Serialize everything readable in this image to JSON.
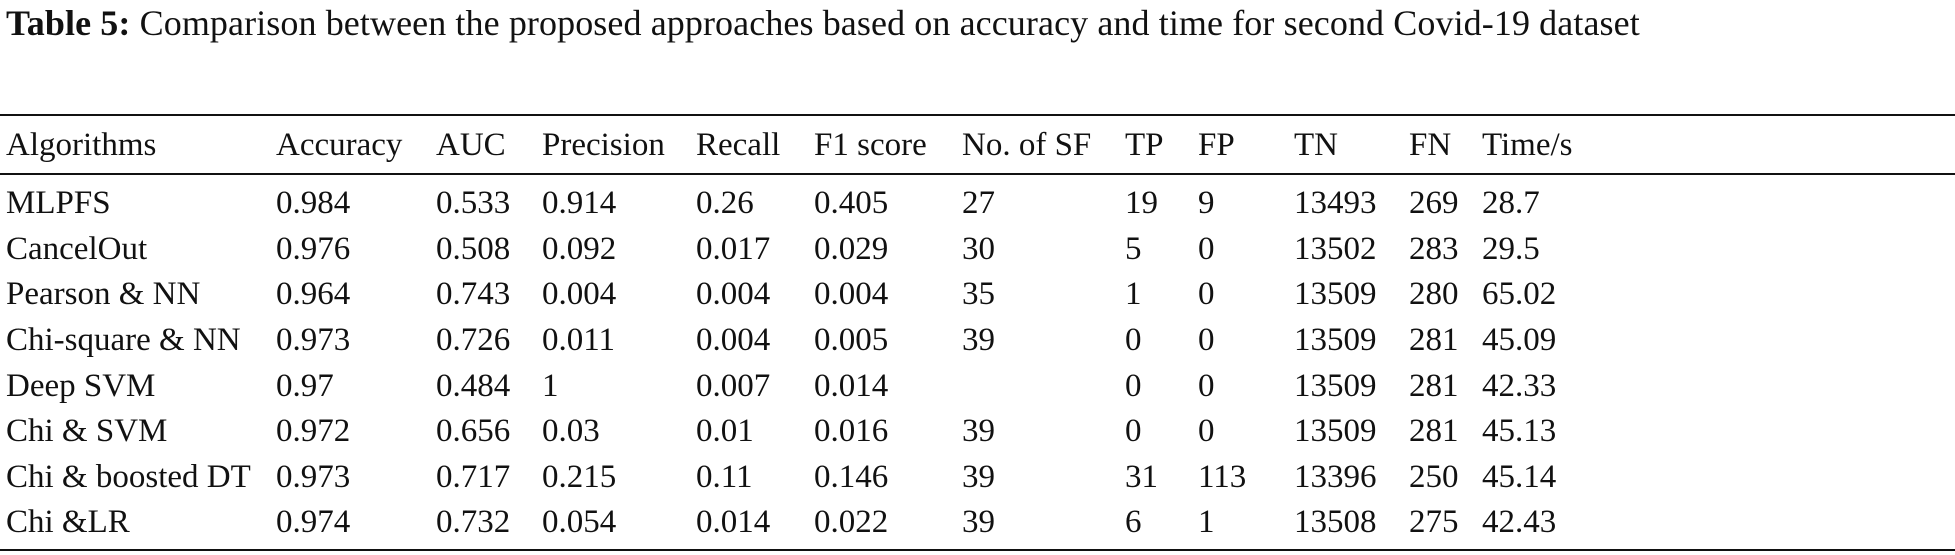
{
  "caption": {
    "label": "Table 5:",
    "text": "Comparison between the proposed approaches based on accuracy and time for second Covid-19 dataset"
  },
  "chart_data": {
    "type": "table",
    "title": "Comparison between the proposed approaches based on accuracy and time for second Covid-19 dataset",
    "columns": [
      "Algorithms",
      "Accuracy",
      "AUC",
      "Precision",
      "Recall",
      "F1 score",
      "No. of SF",
      "TP",
      "FP",
      "TN",
      "FN",
      "Time/s"
    ],
    "rows": [
      [
        "MLPFS",
        "0.984",
        "0.533",
        "0.914",
        "0.26",
        "0.405",
        "27",
        "19",
        "9",
        "13493",
        "269",
        "28.7"
      ],
      [
        "CancelOut",
        "0.976",
        "0.508",
        "0.092",
        "0.017",
        "0.029",
        "30",
        "5",
        "0",
        "13502",
        "283",
        "29.5"
      ],
      [
        "Pearson & NN",
        "0.964",
        "0.743",
        "0.004",
        "0.004",
        "0.004",
        "35",
        "1",
        "0",
        "13509",
        "280",
        "65.02"
      ],
      [
        "Chi-square & NN",
        "0.973",
        "0.726",
        "0.011",
        "0.004",
        "0.005",
        "39",
        "0",
        "0",
        "13509",
        "281",
        "45.09"
      ],
      [
        "Deep SVM",
        "0.97",
        "0.484",
        "1",
        "0.007",
        "0.014",
        "",
        "0",
        "0",
        "13509",
        "281",
        "42.33"
      ],
      [
        "Chi & SVM",
        "0.972",
        "0.656",
        "0.03",
        "0.01",
        "0.016",
        "39",
        "0",
        "0",
        "13509",
        "281",
        "45.13"
      ],
      [
        "Chi & boosted DT",
        "0.973",
        "0.717",
        "0.215",
        "0.11",
        "0.146",
        "39",
        "31",
        "113",
        "13396",
        "250",
        "45.14"
      ],
      [
        "Chi &LR",
        "0.974",
        "0.732",
        "0.054",
        "0.014",
        "0.022",
        "39",
        "6",
        "1",
        "13508",
        "275",
        "42.43"
      ]
    ]
  }
}
